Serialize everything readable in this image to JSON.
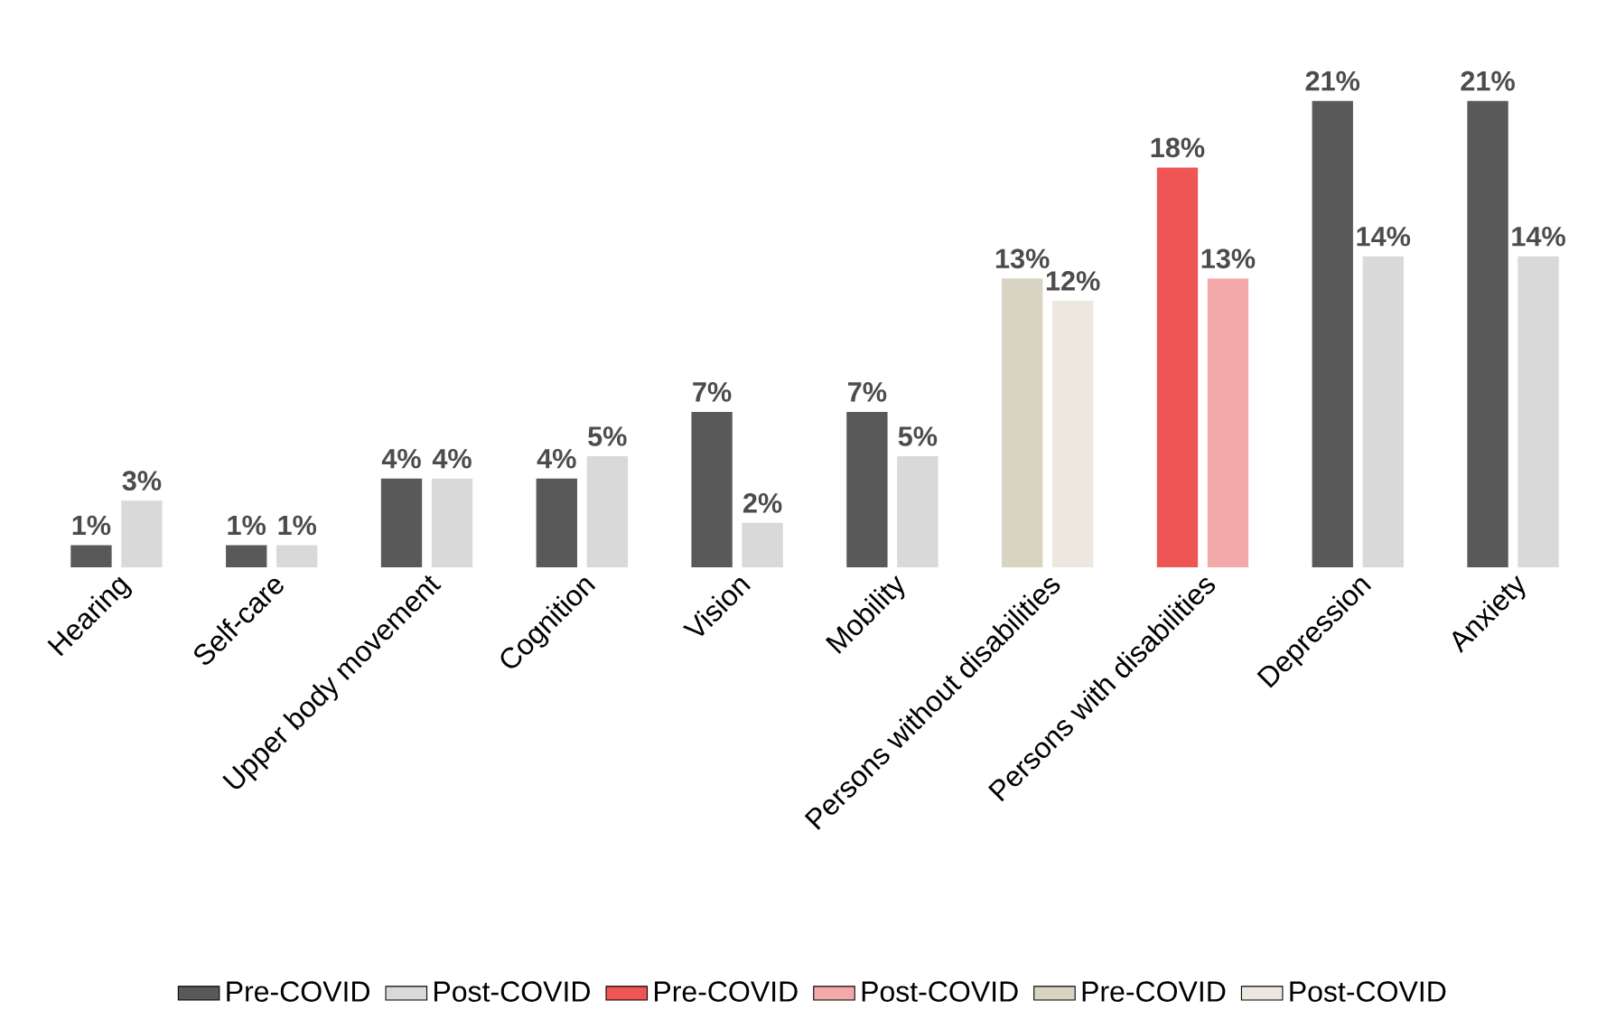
{
  "chart_data": {
    "type": "bar",
    "categories": [
      "Hearing",
      "Self-care",
      "Upper body movement",
      "Cognition",
      "Vision",
      "Mobility",
      "Persons without disabilities",
      "Persons with disabilities",
      "Depression",
      "Anxiety"
    ],
    "series": [
      {
        "name": "Pre-COVID",
        "color": "#595959",
        "values": [
          1,
          1,
          4,
          4,
          7,
          7,
          null,
          null,
          21,
          21
        ],
        "value_labels": [
          "1%",
          "1%",
          "4%",
          "4%",
          "7%",
          "7%",
          null,
          null,
          "21%",
          "21%"
        ]
      },
      {
        "name": "Post-COVID",
        "color": "#d9d9d9",
        "values": [
          3,
          1,
          4,
          5,
          2,
          5,
          null,
          null,
          14,
          14
        ],
        "value_labels": [
          "3%",
          "1%",
          "4%",
          "5%",
          "2%",
          "5%",
          null,
          null,
          "14%",
          "14%"
        ]
      },
      {
        "name": "Pre-COVID",
        "color": "#ef5555",
        "values": [
          null,
          null,
          null,
          null,
          null,
          null,
          null,
          18,
          null,
          null
        ],
        "value_labels": [
          null,
          null,
          null,
          null,
          null,
          null,
          null,
          "18%",
          null,
          null
        ]
      },
      {
        "name": "Post-COVID",
        "color": "#f4a9a9",
        "values": [
          null,
          null,
          null,
          null,
          null,
          null,
          null,
          13,
          null,
          null
        ],
        "value_labels": [
          null,
          null,
          null,
          null,
          null,
          null,
          null,
          "13%",
          null,
          null
        ]
      },
      {
        "name": "Pre-COVID",
        "color": "#d9d3c1",
        "values": [
          null,
          null,
          null,
          null,
          null,
          null,
          13,
          null,
          null,
          null
        ],
        "value_labels": [
          null,
          null,
          null,
          null,
          null,
          null,
          "13%",
          null,
          null,
          null
        ]
      },
      {
        "name": "Post-COVID",
        "color": "#ece8e0",
        "values": [
          null,
          null,
          null,
          null,
          null,
          null,
          12,
          null,
          null,
          null
        ],
        "value_labels": [
          null,
          null,
          null,
          null,
          null,
          null,
          "12%",
          null,
          null,
          null
        ]
      }
    ],
    "legend": "bottom"
  }
}
